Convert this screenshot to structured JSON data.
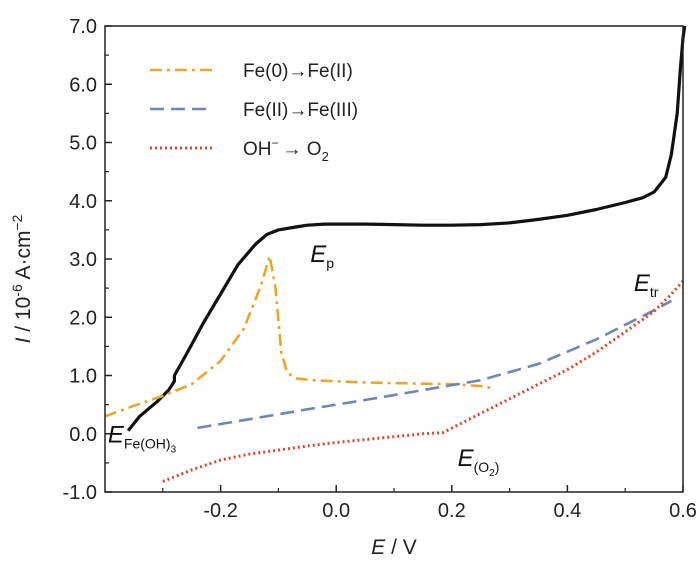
{
  "chart_data": {
    "type": "line",
    "xlabel": {
      "italic": "E",
      "rest": " / V"
    },
    "ylabel": {
      "italic": "I",
      "rest": " / 10",
      "sup": "-6",
      "rest2": " A·cm",
      "sup2": "−2"
    },
    "xlim": [
      -0.4,
      0.6
    ],
    "ylim": [
      -1.0,
      7.0
    ],
    "xticks": [
      -0.2,
      0.0,
      0.2,
      0.4,
      0.6
    ],
    "xtick_labels": [
      "-0.2",
      "0.0",
      "0.2",
      "0.4",
      "0.6"
    ],
    "yticks": [
      -1.0,
      0.0,
      1.0,
      2.0,
      3.0,
      4.0,
      5.0,
      6.0,
      7.0
    ],
    "ytick_labels": [
      "-1.0",
      "0.0",
      "1.0",
      "2.0",
      "3.0",
      "4.0",
      "5.0",
      "6.0",
      "7.0"
    ],
    "series": [
      {
        "color": "#111111",
        "style": "solid",
        "x": [
          -0.36,
          -0.34,
          -0.31,
          -0.29,
          -0.28,
          -0.28,
          -0.26,
          -0.23,
          -0.2,
          -0.17,
          -0.14,
          -0.12,
          -0.1,
          -0.07,
          -0.05,
          -0.02,
          0.0,
          0.05,
          0.1,
          0.15,
          0.2,
          0.25,
          0.3,
          0.35,
          0.4,
          0.45,
          0.5,
          0.53,
          0.55,
          0.57,
          0.58,
          0.59,
          0.595,
          0.6,
          0.603
        ],
        "y": [
          0.05,
          0.3,
          0.55,
          0.75,
          0.9,
          1.0,
          1.35,
          1.9,
          2.4,
          2.9,
          3.25,
          3.42,
          3.5,
          3.55,
          3.58,
          3.6,
          3.6,
          3.6,
          3.59,
          3.58,
          3.58,
          3.59,
          3.62,
          3.68,
          3.75,
          3.85,
          3.97,
          4.05,
          4.15,
          4.4,
          4.8,
          5.5,
          6.2,
          6.8,
          7.0
        ]
      },
      {
        "name": "Fe(0)→Fe(II)",
        "color": "#e8a72a",
        "style": "dashdot",
        "x": [
          -0.4,
          -0.35,
          -0.3,
          -0.25,
          -0.2,
          -0.16,
          -0.13,
          -0.115,
          -0.105,
          -0.095,
          -0.085,
          -0.07,
          -0.04,
          0.0,
          0.05,
          0.1,
          0.15,
          0.2,
          0.25,
          0.27
        ],
        "y": [
          0.3,
          0.48,
          0.65,
          0.85,
          1.25,
          1.8,
          2.55,
          3.05,
          2.5,
          1.4,
          1.05,
          0.95,
          0.92,
          0.9,
          0.88,
          0.87,
          0.86,
          0.85,
          0.82,
          0.78
        ]
      },
      {
        "name": "Fe(II)→Fe(III)",
        "color": "#6f86b8",
        "style": "dashed",
        "x": [
          -0.24,
          -0.15,
          -0.05,
          0.05,
          0.15,
          0.25,
          0.35,
          0.45,
          0.55,
          0.58
        ],
        "y": [
          0.1,
          0.25,
          0.42,
          0.58,
          0.75,
          0.92,
          1.2,
          1.62,
          2.12,
          2.28
        ]
      },
      {
        "name": "OH⁻ → O₂",
        "color": "#e0452a",
        "style": "dotted",
        "x": [
          -0.3,
          -0.25,
          -0.2,
          -0.15,
          -0.1,
          -0.05,
          0.0,
          0.05,
          0.1,
          0.15,
          0.185,
          0.25,
          0.3,
          0.35,
          0.4,
          0.45,
          0.5,
          0.55,
          0.58,
          0.6
        ],
        "y": [
          -0.82,
          -0.62,
          -0.45,
          -0.35,
          -0.28,
          -0.21,
          -0.15,
          -0.1,
          -0.05,
          0.0,
          0.02,
          0.35,
          0.6,
          0.85,
          1.1,
          1.4,
          1.75,
          2.1,
          2.4,
          2.62
        ]
      }
    ],
    "legend": {
      "placement": "top-left",
      "entries": [
        {
          "label": "Fe(0)→Fe(II)",
          "color": "#e8a72a",
          "style": "dashdot"
        },
        {
          "label": "Fe(II)→Fe(III)",
          "color": "#6f86b8",
          "style": "dashed"
        },
        {
          "label_main": "OH",
          "label_sup": "−",
          "label_rest": "→ O",
          "label_sub": "2",
          "color": "#e0452a",
          "style": "dotted"
        }
      ]
    },
    "annotations": [
      {
        "id": "ep",
        "main": "E",
        "sub": "p",
        "x": -0.045,
        "y": 2.95
      },
      {
        "id": "etr",
        "main": "E",
        "sub": "tr",
        "x": 0.515,
        "y": 2.45
      },
      {
        "id": "efe",
        "main": "E",
        "sub": "Fe(OH)",
        "subsub": "3",
        "x": -0.395,
        "y": -0.15
      },
      {
        "id": "eo2",
        "main": "E",
        "sub": "(O",
        "subsub": "2",
        "sub2": ")",
        "x": 0.21,
        "y": -0.55
      }
    ]
  }
}
